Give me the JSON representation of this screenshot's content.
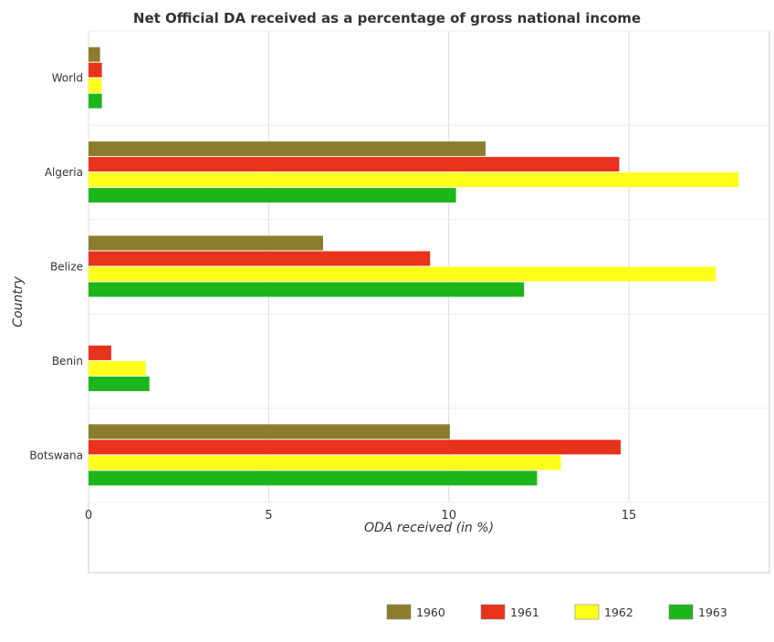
{
  "chart_data": {
    "type": "bar",
    "orientation": "horizontal",
    "title": "Net Official DA received as a percentage of gross national income",
    "xlabel": "ODA received (in %)",
    "ylabel": "Country",
    "xlim": [
      0,
      18.9
    ],
    "xticks": [
      0,
      5,
      10,
      15
    ],
    "grid": true,
    "legend_position": "bottom-right",
    "categories": [
      "World",
      "Algeria",
      "Belize",
      "Benin",
      "Botswana"
    ],
    "series": [
      {
        "name": "1960",
        "color": "#8B7D2B",
        "values": [
          0.32,
          11.02,
          6.51,
          0.0,
          10.03
        ]
      },
      {
        "name": "1961",
        "color": "#E8331C",
        "values": [
          0.37,
          14.73,
          9.48,
          0.63,
          14.77
        ]
      },
      {
        "name": "1962",
        "color": "#FFFF1C",
        "values": [
          0.36,
          18.05,
          17.41,
          1.59,
          13.11
        ]
      },
      {
        "name": "1963",
        "color": "#1CB51C",
        "values": [
          0.37,
          10.2,
          12.09,
          1.69,
          12.45
        ]
      }
    ]
  }
}
